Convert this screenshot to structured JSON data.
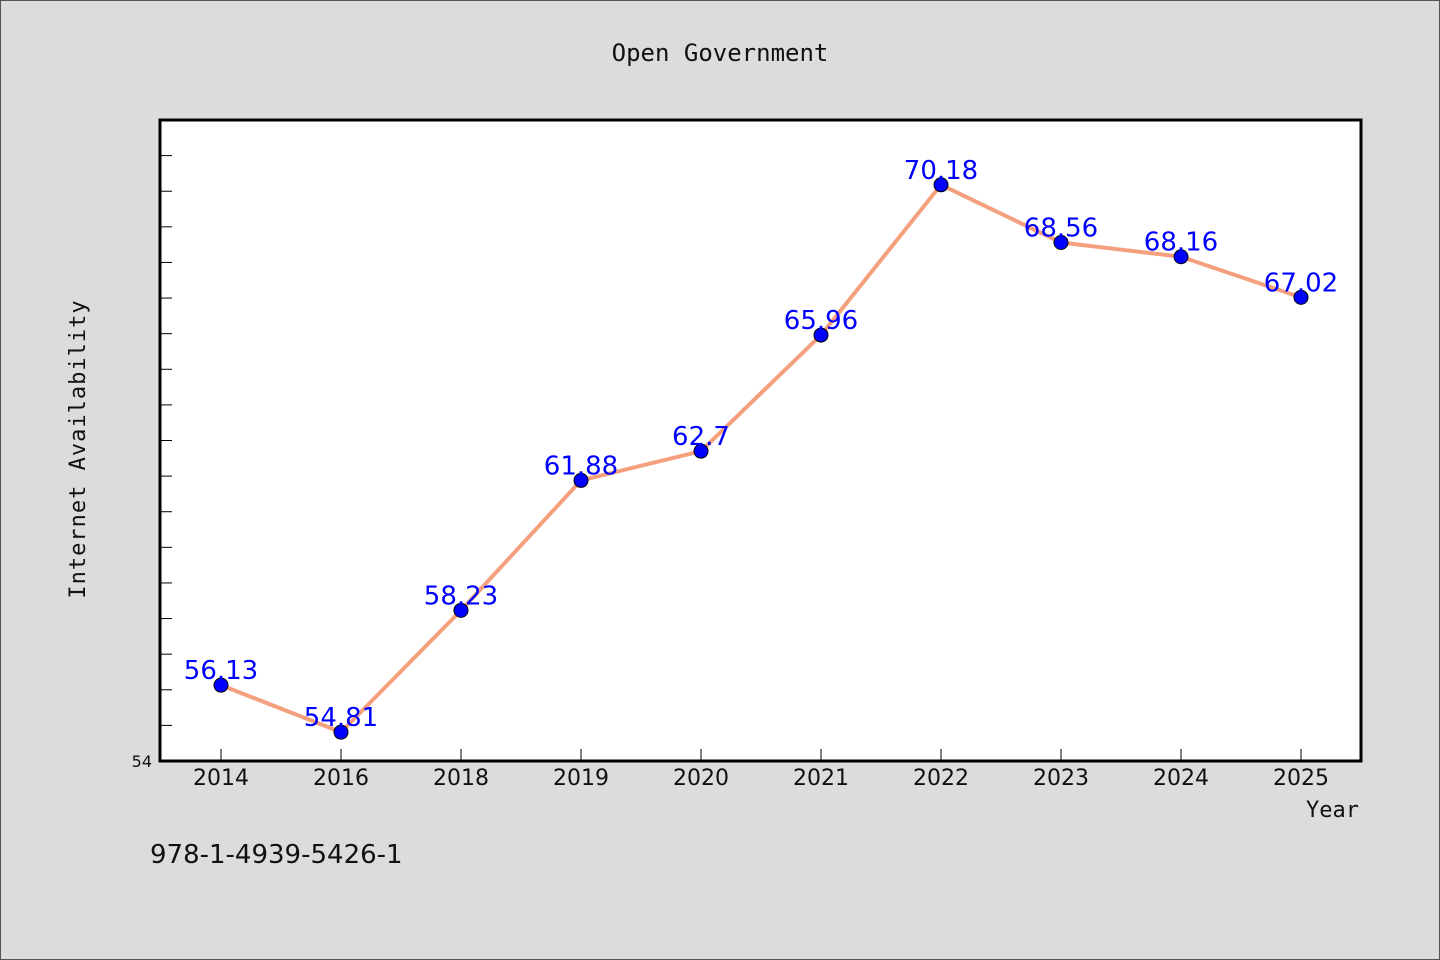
{
  "page": {
    "footer_text": "978-1-4939-5426-1"
  },
  "colors": {
    "background": "#dcdcdc",
    "plot_background": "#ffffff",
    "line": "#f4a07e",
    "marker": "#0000ff",
    "data_label": "#0000ff",
    "text": "#111111"
  },
  "chart_data": {
    "type": "line",
    "title": "Open Government",
    "xlabel": "Year",
    "ylabel": "Internet Availability",
    "categories": [
      "2014",
      "2016",
      "2018",
      "2019",
      "2020",
      "2021",
      "2022",
      "2023",
      "2024",
      "2025"
    ],
    "values": [
      56.13,
      54.81,
      58.23,
      61.88,
      62.7,
      65.96,
      70.18,
      68.56,
      68.16,
      67.02
    ],
    "data_labels": [
      "56.13",
      "54.81",
      "58.23",
      "61.88",
      "62.7",
      "65.96",
      "70.18",
      "68.56",
      "68.16",
      "67.02"
    ],
    "ylim": [
      54,
      72
    ],
    "y_tick_labels": [
      "54"
    ],
    "grid": false,
    "legend": "none"
  }
}
